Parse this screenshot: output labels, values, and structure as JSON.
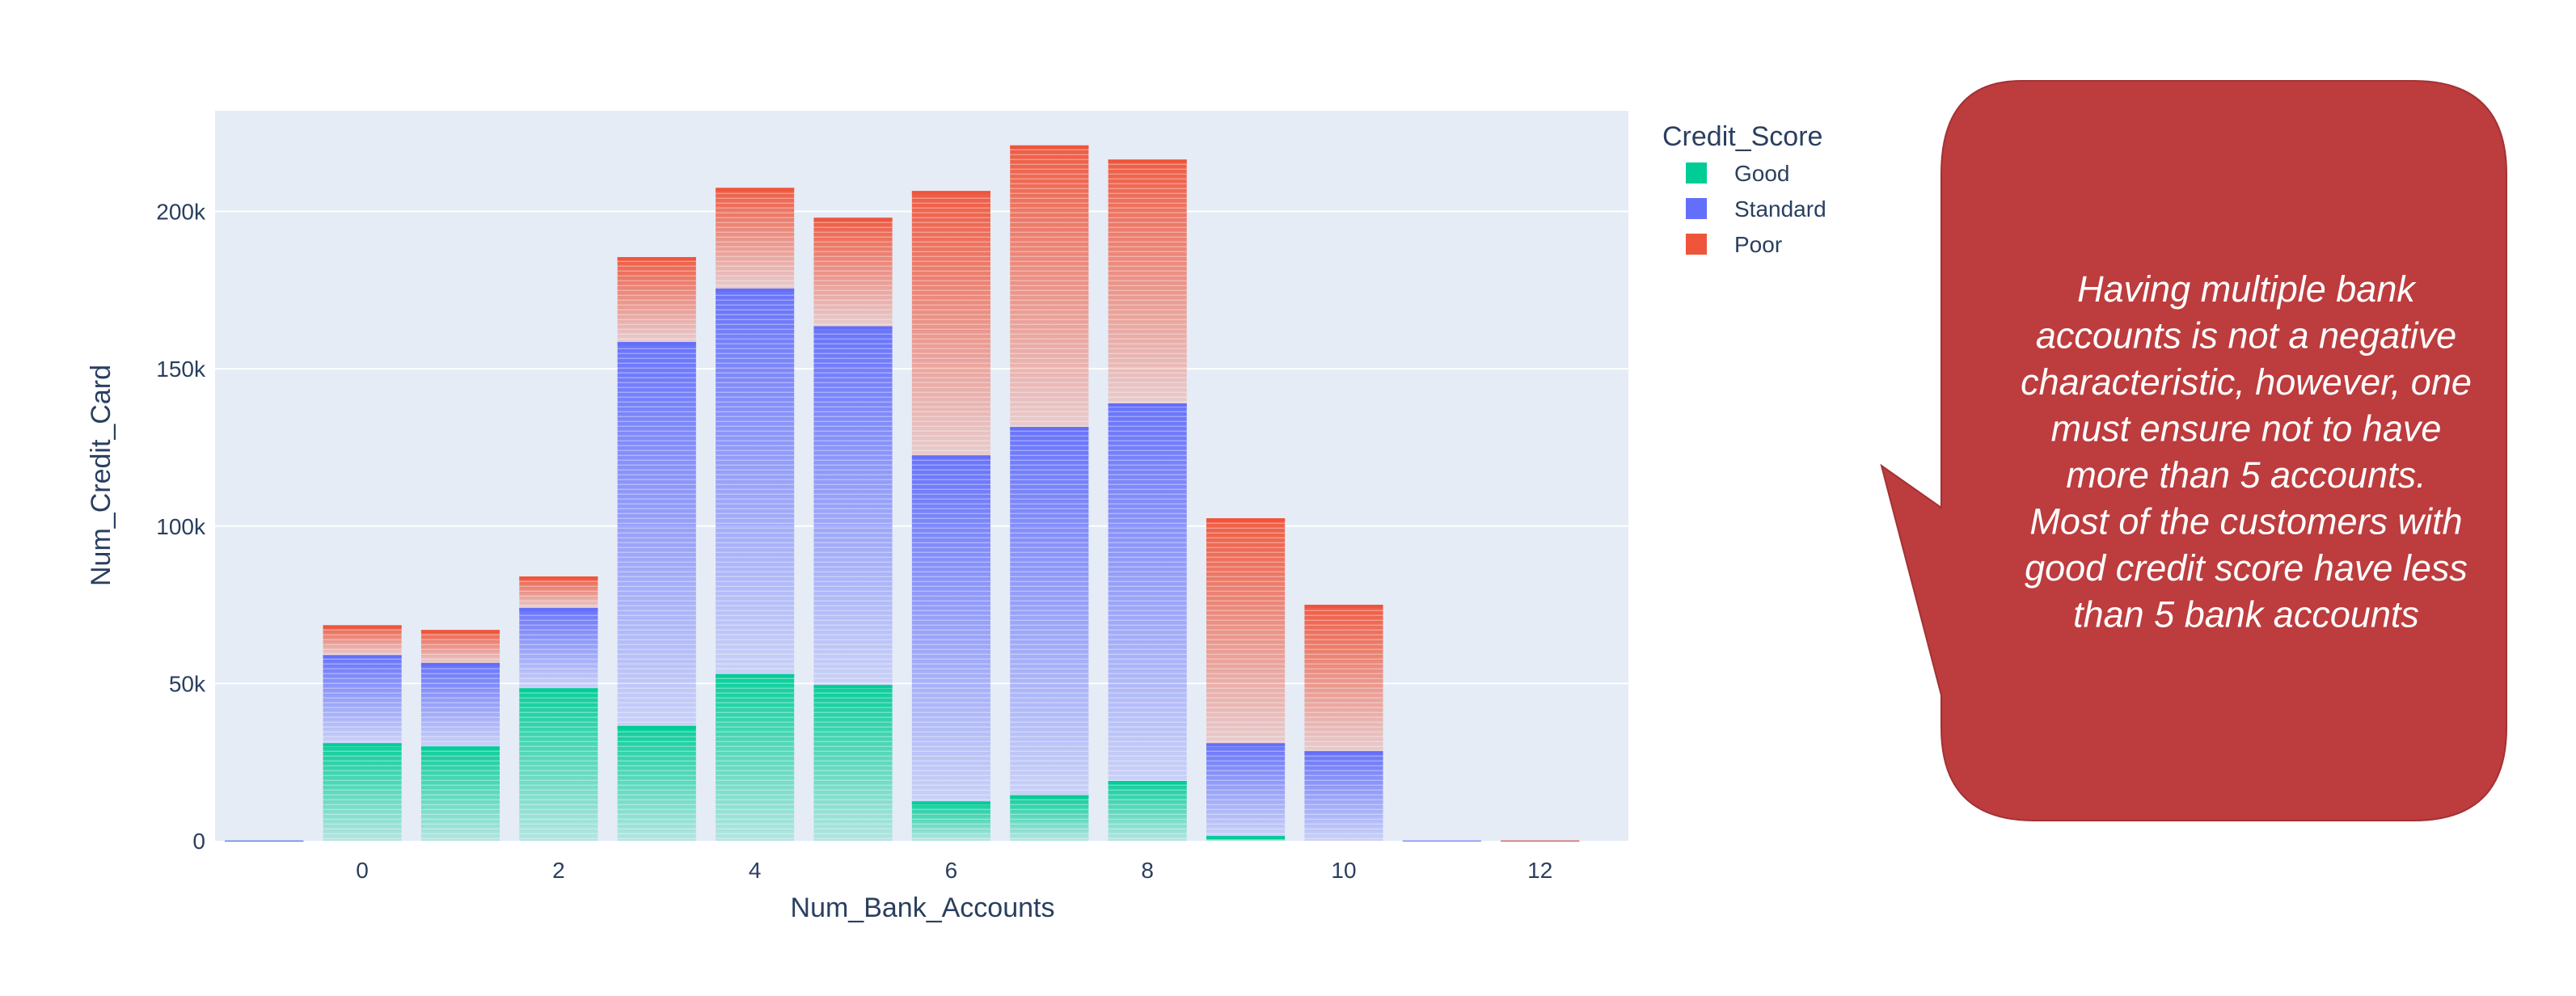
{
  "chart_data": {
    "type": "bar",
    "barmode": "stack",
    "title": "",
    "xlabel": "Num_Bank_Accounts",
    "ylabel": "Num_Credit_Card",
    "x": [
      -1,
      0,
      1,
      2,
      3,
      4,
      5,
      6,
      7,
      8,
      9,
      10,
      11,
      12
    ],
    "xlim": [
      -1.5,
      12.9
    ],
    "ylim": [
      0,
      232000
    ],
    "x_ticks": [
      0,
      2,
      4,
      6,
      8,
      10,
      12
    ],
    "y_ticks": [
      0,
      50000,
      100000,
      150000,
      200000
    ],
    "y_tick_labels": [
      "0",
      "50k",
      "100k",
      "150k",
      "200k"
    ],
    "grid": true,
    "legend": {
      "title": "Credit_Score",
      "placement": "top-right-outside"
    },
    "series": [
      {
        "name": "Good",
        "color": "#00cc96",
        "values": [
          20,
          31000,
          30000,
          48500,
          36500,
          53000,
          49500,
          12500,
          14500,
          19000,
          1500,
          0,
          0,
          0
        ]
      },
      {
        "name": "Standard",
        "color": "#636efa",
        "values": [
          20,
          28000,
          26500,
          25500,
          122000,
          122500,
          114000,
          110000,
          117000,
          120000,
          29500,
          28500,
          50,
          30
        ]
      },
      {
        "name": "Poor",
        "color": "#ef553b",
        "values": [
          0,
          9500,
          10500,
          10000,
          27000,
          32000,
          34500,
          84000,
          89500,
          77500,
          71500,
          46500,
          0,
          20
        ]
      }
    ]
  },
  "callout": {
    "lines": [
      "Having multiple bank",
      "accounts is not a negative",
      "characteristic, however, one",
      "must ensure not to have",
      "more than 5 accounts.",
      "Most of the customers with",
      "good credit score have less",
      "than 5 bank accounts"
    ],
    "fill_color": "#bd3c3e",
    "text_color": "#ffffff"
  }
}
